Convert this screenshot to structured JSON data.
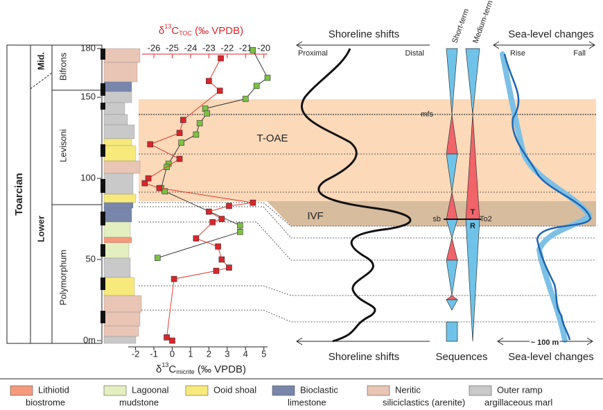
{
  "chart_data": {
    "type": "scatter",
    "ylim": [
      0,
      180
    ],
    "yticks": [
      {
        "value": 0,
        "label": "0m"
      },
      50,
      100,
      150,
      180
    ],
    "xlim": [
      -2.4,
      5.2
    ],
    "xticks": [
      -2,
      -1,
      0,
      1,
      2,
      3,
      4,
      5
    ],
    "x2lim": [
      -27.4,
      -19.8
    ],
    "x2ticks": [
      -26,
      -25,
      -24,
      -23,
      -22,
      -21,
      -20
    ],
    "x_label": [
      "δ",
      "13",
      "C",
      "micrite",
      " (‰ VPDB)"
    ],
    "x2_label": [
      "δ",
      "13",
      "C",
      "TOC",
      " (‰ VPDB)"
    ],
    "series": [
      {
        "color": "#7cc142",
        "line_color": "#333333",
        "x": [
          4.4,
          5.2,
          4.6,
          4.0,
          1.8,
          1.9,
          1.5,
          1.3,
          0.5,
          -0.2,
          -0.3,
          -0.6,
          -0.4,
          3.7,
          3.7,
          -0.8
        ],
        "values": [
          179,
          162,
          157,
          149,
          143,
          140,
          134,
          127,
          122,
          109,
          107,
          94,
          92,
          71,
          67,
          51
        ]
      },
      {
        "color": "#d9262b",
        "line_color": "#e0392f",
        "axis": "x2",
        "x": [
          -22.35,
          -23.0,
          -22.4,
          -24.4,
          -24.6,
          -26.2,
          -24.6,
          -26.3,
          -26.5,
          -25.7,
          -20.6,
          -21.9,
          -23.0,
          -22.3,
          -22.8,
          -23.7,
          -22.5,
          -22.3,
          -21.9,
          -22.6,
          -24.9,
          -25.3,
          -25.0
        ],
        "values": [
          174,
          160,
          154,
          136,
          128,
          121,
          112,
          100,
          97,
          94,
          85,
          83,
          79.5,
          75,
          73,
          63,
          58,
          50,
          45,
          43,
          38,
          2,
          0
        ]
      }
    ]
  },
  "stratigraphy": {
    "stage": "Toarcian",
    "substages": [
      "Lower",
      "Mid."
    ],
    "zones": [
      "Polymorphum",
      "Levisoni",
      "Bifrons"
    ]
  },
  "intervals": {
    "toae": "T-OAE",
    "ivf": "IVF",
    "mfs": "mfs",
    "sb": "sb",
    "transgressive": "T",
    "regressive": "R",
    "sequence": "To2"
  },
  "shoreline": {
    "title": "Shoreline shifts",
    "left": "Proximal",
    "right": "Distal",
    "footer": "Shoreline shifts"
  },
  "sequences": {
    "short": "Short-term",
    "medium": "Medium-term",
    "footer": "Sequences"
  },
  "sea_level": {
    "title": "Sea-level changes",
    "left": "Rise",
    "right": "Fall",
    "scale": "~ 100 m",
    "footer": "Sea-level changes"
  },
  "legend": [
    {
      "label": [
        "Lithiotid",
        "biostrome"
      ],
      "color": "#f59a7c"
    },
    {
      "label": [
        "Lagoonal",
        "mudstone"
      ],
      "color": "#e4efbf"
    },
    {
      "label": [
        "Ooid shoal"
      ],
      "color": "#f7ea7b"
    },
    {
      "label": [
        "Bioclastic",
        "limestone"
      ],
      "color": "#7886ab"
    },
    {
      "label": [
        "Neritic",
        "siliciclastics (arenite)"
      ],
      "color": "#e8c5b5"
    },
    {
      "label": [
        "Outer ramp",
        "argillaceous marl"
      ],
      "color": "#c9c9c9"
    }
  ]
}
